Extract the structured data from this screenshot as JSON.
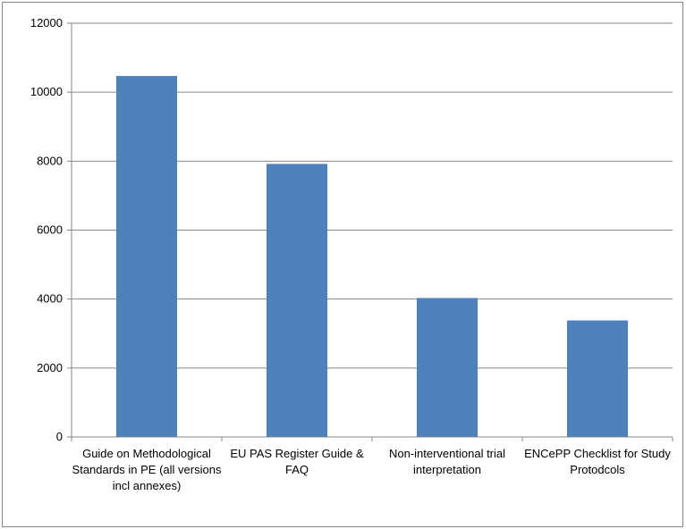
{
  "chart_data": {
    "type": "bar",
    "categories": [
      "Guide on Methodological Standards in PE (all versions incl annexes)",
      "EU PAS Register Guide & FAQ",
      "Non-interventional trial interpretation",
      "ENCePP Checklist for Study Protodcols"
    ],
    "values": [
      10470,
      7920,
      4030,
      3380
    ],
    "ylim": [
      0,
      12000
    ],
    "yticks": [
      0,
      2000,
      4000,
      6000,
      8000,
      10000,
      12000
    ],
    "grid": true,
    "legend": "none",
    "bar_color": "#4f81bd",
    "title": "",
    "xlabel": "",
    "ylabel": ""
  }
}
